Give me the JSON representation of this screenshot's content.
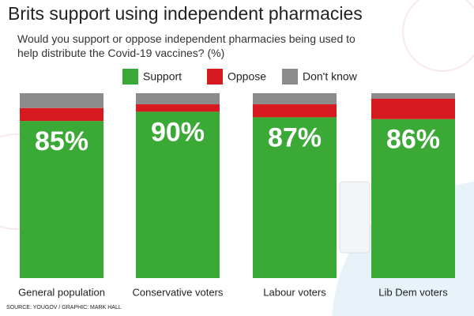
{
  "chart_data": {
    "type": "bar",
    "stacked": true,
    "title": "Brits support using independent pharmacies",
    "subtitle": "Would you support or oppose independent pharmacies being used to help distribute the Covid-19 vaccines? (%)",
    "source": "SOURCE: YOUGOV / GRAPHIC: MARK HALL",
    "categories": [
      "General population",
      "Conservative voters",
      "Labour voters",
      "Lib Dem voters"
    ],
    "ylim": [
      0,
      100
    ],
    "series": [
      {
        "name": "Support",
        "color": "#3aa935",
        "values": [
          85,
          90,
          87,
          86
        ],
        "value_labels": [
          "85%",
          "90%",
          "87%",
          "86%"
        ]
      },
      {
        "name": "Oppose",
        "color": "#d71920",
        "values": [
          7,
          4,
          7,
          11
        ]
      },
      {
        "name": "Don't know",
        "color": "#8c8c8c",
        "values": [
          8,
          6,
          6,
          3
        ]
      }
    ]
  }
}
